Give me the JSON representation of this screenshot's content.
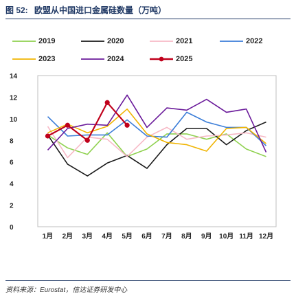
{
  "header": {
    "figure_number": "图 52:",
    "title": "欧盟从中国进口金属硅数量（万吨）"
  },
  "footer": {
    "source": "资料来源：Eurostat，信达证券研发中心"
  },
  "chart_data": {
    "type": "line",
    "title": "欧盟从中国进口金属硅数量（万吨）",
    "xlabel": "",
    "ylabel": "",
    "categories": [
      "1月",
      "2月",
      "3月",
      "4月",
      "5月",
      "6月",
      "7月",
      "8月",
      "9月",
      "10月",
      "11月",
      "12月"
    ],
    "ylim": [
      0,
      14
    ],
    "yticks": [
      0,
      2,
      4,
      6,
      8,
      10,
      12,
      14
    ],
    "grid": false,
    "legend_position": "top",
    "series": [
      {
        "name": "2019",
        "color": "#8fd14f",
        "marker": "none",
        "dash": "solid",
        "values": [
          8.5,
          7.3,
          6.7,
          8.7,
          6.5,
          7.2,
          8.6,
          8.6,
          8.1,
          8.6,
          7.2,
          6.5
        ]
      },
      {
        "name": "2020",
        "color": "#1a1a1a",
        "marker": "none",
        "dash": "solid",
        "values": [
          8.5,
          5.8,
          4.7,
          5.9,
          6.6,
          5.4,
          7.6,
          9.1,
          9.1,
          7.6,
          8.9,
          9.7
        ]
      },
      {
        "name": "2021",
        "color": "#f7b9c6",
        "marker": "none",
        "dash": "solid",
        "values": [
          9.3,
          6.4,
          8.3,
          8.1,
          6.5,
          8.3,
          9.2,
          8.1,
          8.4,
          8.5,
          8.7,
          8.3
        ]
      },
      {
        "name": "2022",
        "color": "#3b7dd8",
        "marker": "none",
        "dash": "solid",
        "values": [
          10.2,
          8.4,
          8.5,
          8.5,
          9.9,
          8.4,
          8.3,
          10.6,
          9.7,
          9.2,
          9.2,
          7.5
        ]
      },
      {
        "name": "2023",
        "color": "#f0b400",
        "marker": "none",
        "dash": "solid",
        "values": [
          8.7,
          9.5,
          8.7,
          9.3,
          10.9,
          8.6,
          7.8,
          7.6,
          7.0,
          9.1,
          9.2,
          7.7
        ]
      },
      {
        "name": "2024",
        "color": "#6a1a9a",
        "marker": "none",
        "dash": "solid",
        "values": [
          7.1,
          9.1,
          9.5,
          9.4,
          12.2,
          9.2,
          11.0,
          10.8,
          11.8,
          10.6,
          10.9,
          6.9
        ]
      },
      {
        "name": "2025",
        "color": "#c0001b",
        "marker": "dot",
        "dash": "solid",
        "values": [
          8.4,
          9.4,
          8.0,
          11.5,
          9.4,
          null,
          null,
          null,
          null,
          null,
          null,
          null
        ]
      }
    ]
  }
}
